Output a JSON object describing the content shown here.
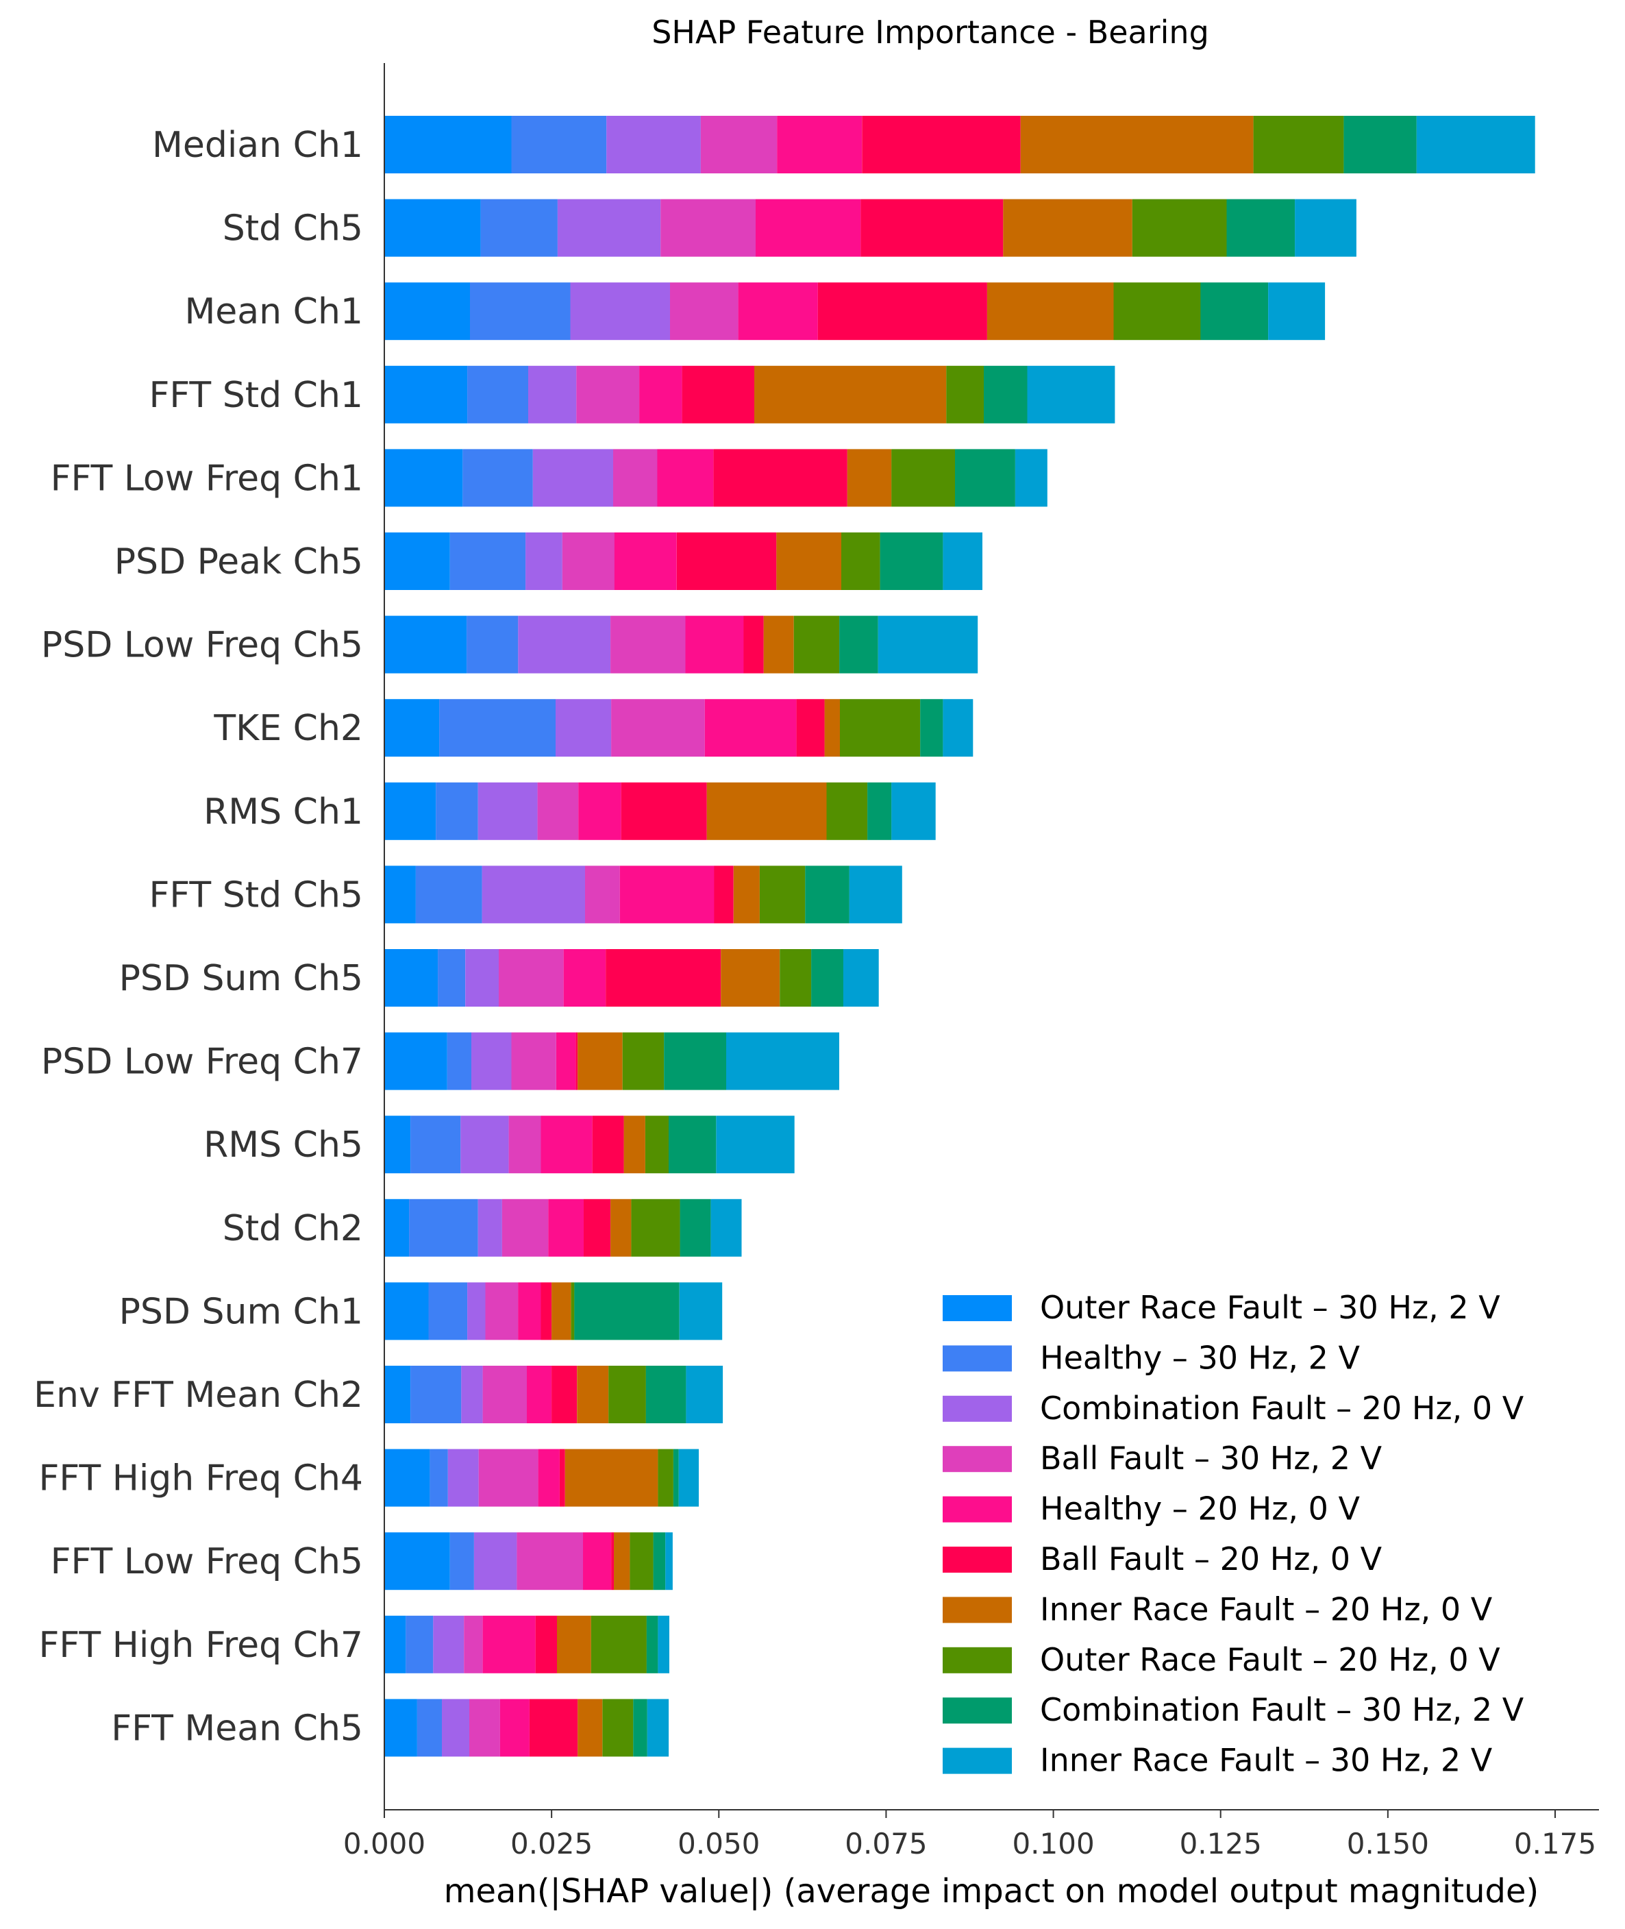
{
  "chart_data": {
    "type": "bar",
    "orientation": "horizontal",
    "stacked": true,
    "title": "SHAP Feature Importance - Bearing",
    "xlabel": "mean(|SHAP value|) (average impact on model output magnitude)",
    "ylabel": "",
    "xlim": [
      0,
      0.18
    ],
    "xticks": [
      "0.000",
      "0.025",
      "0.050",
      "0.075",
      "0.100",
      "0.125",
      "0.150",
      "0.175"
    ],
    "grid": false,
    "legend_position": "bottom-right",
    "categories": [
      "Median Ch1",
      "Std Ch5",
      "Mean Ch1",
      "FFT Std Ch1",
      "FFT Low Freq Ch1",
      "PSD Peak Ch5",
      "PSD Low Freq Ch5",
      "TKE Ch2",
      "RMS Ch1",
      "FFT Std Ch5",
      "PSD Sum Ch5",
      "PSD Low Freq Ch7",
      "RMS Ch5",
      "Std Ch2",
      "PSD Sum Ch1",
      "Env FFT Mean Ch2",
      "FFT High Freq Ch4",
      "FFT Low Freq Ch5",
      "FFT High Freq Ch7",
      "FFT Mean Ch5"
    ],
    "series": [
      {
        "name": "Outer Race Fault – 30 Hz, 2 V",
        "color": "#008bfb",
        "values": [
          0.019,
          0.0144,
          0.0128,
          0.0124,
          0.0117,
          0.0098,
          0.0123,
          0.0082,
          0.0077,
          0.0047,
          0.008,
          0.0094,
          0.0039,
          0.0037,
          0.0066,
          0.0039,
          0.0068,
          0.0098,
          0.0032,
          0.0049
        ]
      },
      {
        "name": "Healthy – 30 Hz, 2 V",
        "color": "#3e80f5",
        "values": [
          0.0142,
          0.0115,
          0.015,
          0.0091,
          0.0105,
          0.0113,
          0.0077,
          0.0174,
          0.0063,
          0.0099,
          0.0041,
          0.0036,
          0.0075,
          0.0103,
          0.0058,
          0.0076,
          0.0027,
          0.0036,
          0.0041,
          0.0037
        ]
      },
      {
        "name": "Combination Fault – 20 Hz, 0 V",
        "color": "#a163ea",
        "values": [
          0.0141,
          0.0154,
          0.0149,
          0.0072,
          0.012,
          0.0055,
          0.0138,
          0.0083,
          0.0089,
          0.0154,
          0.005,
          0.006,
          0.0072,
          0.0036,
          0.0027,
          0.0032,
          0.0046,
          0.0064,
          0.0046,
          0.0041
        ]
      },
      {
        "name": "Ball Fault – 30 Hz, 2 V",
        "color": "#df3fbb",
        "values": [
          0.0114,
          0.0142,
          0.0102,
          0.0094,
          0.0066,
          0.0078,
          0.0112,
          0.014,
          0.0061,
          0.0052,
          0.0097,
          0.0067,
          0.0048,
          0.0069,
          0.0049,
          0.0066,
          0.0089,
          0.0099,
          0.0028,
          0.0046
        ]
      },
      {
        "name": "Healthy – 20 Hz, 0 V",
        "color": "#fd0e8d",
        "values": [
          0.0127,
          0.0157,
          0.0119,
          0.0064,
          0.0084,
          0.0093,
          0.0087,
          0.0137,
          0.0064,
          0.0141,
          0.0063,
          0.0029,
          0.0077,
          0.0053,
          0.0034,
          0.0037,
          0.0032,
          0.0042,
          0.0079,
          0.0044
        ]
      },
      {
        "name": "Ball Fault – 20 Hz, 0 V",
        "color": "#ff0051",
        "values": [
          0.0237,
          0.0213,
          0.0253,
          0.0108,
          0.02,
          0.0149,
          0.003,
          0.0042,
          0.0128,
          0.0029,
          0.0172,
          0.0003,
          0.0047,
          0.004,
          0.0016,
          0.0038,
          0.0008,
          0.0004,
          0.0032,
          0.0072
        ]
      },
      {
        "name": "Inner Race Fault – 20 Hz, 0 V",
        "color": "#c76a00",
        "values": [
          0.0348,
          0.0193,
          0.0189,
          0.0287,
          0.0066,
          0.0097,
          0.0045,
          0.0023,
          0.0179,
          0.0039,
          0.0088,
          0.0067,
          0.0032,
          0.0031,
          0.0029,
          0.0047,
          0.0139,
          0.0024,
          0.0051,
          0.0037
        ]
      },
      {
        "name": "Outer Race Fault – 20 Hz, 0 V",
        "color": "#539000",
        "values": [
          0.0135,
          0.0141,
          0.013,
          0.0056,
          0.0095,
          0.0058,
          0.0068,
          0.012,
          0.0061,
          0.0068,
          0.0047,
          0.0062,
          0.0035,
          0.0073,
          0.0005,
          0.0056,
          0.0023,
          0.0035,
          0.0083,
          0.0046
        ]
      },
      {
        "name": "Combination Fault – 30 Hz, 2 V",
        "color": "#009b6c",
        "values": [
          0.0109,
          0.0102,
          0.0101,
          0.0065,
          0.009,
          0.0094,
          0.0058,
          0.0034,
          0.0036,
          0.0066,
          0.0048,
          0.0093,
          0.0071,
          0.0046,
          0.0157,
          0.006,
          0.0008,
          0.0018,
          0.0017,
          0.0021
        ]
      },
      {
        "name": "Inner Race Fault – 30 Hz, 2 V",
        "color": "#009fd3",
        "values": [
          0.0177,
          0.0092,
          0.0085,
          0.0131,
          0.0048,
          0.0059,
          0.0149,
          0.0045,
          0.0066,
          0.0079,
          0.0053,
          0.0169,
          0.0117,
          0.0046,
          0.0064,
          0.0055,
          0.003,
          0.0011,
          0.0017,
          0.0032
        ]
      }
    ]
  }
}
